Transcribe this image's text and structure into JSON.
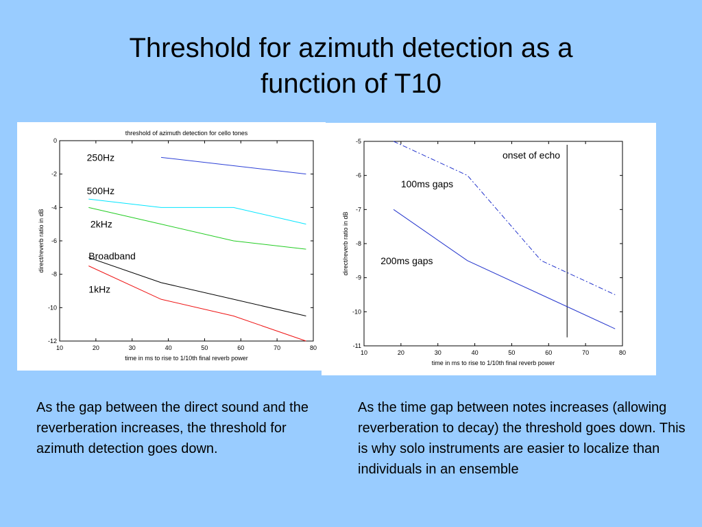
{
  "slide": {
    "title_line1": "Threshold for azimuth detection as a",
    "title_line2": "function of T10",
    "caption_left": "As the gap between the direct sound and the reverberation increases, the threshold for azimuth detection goes down.",
    "caption_right": "As the time gap between notes increases (allowing reverberation to decay) the threshold goes down.  This is why solo instruments are easier to localize than individuals in an ensemble"
  },
  "chart_data": [
    {
      "type": "line",
      "title": "threshold of azimuth detection for cello tones",
      "xlabel": "time in ms to rise to 1/10th final reverb power",
      "ylabel": "direct/reverb ratio in dB",
      "xlim": [
        10,
        80
      ],
      "ylim": [
        -12,
        0
      ],
      "xticks": [
        "10",
        "20",
        "30",
        "40",
        "50",
        "60",
        "70",
        "80"
      ],
      "yticks": [
        "0",
        "-2",
        "-4",
        "-6",
        "-8",
        "-10",
        "-12"
      ],
      "grid": false,
      "series": [
        {
          "name": "250Hz",
          "color": "#2b3fd6",
          "x": [
            38,
            58,
            78
          ],
          "y": [
            -1.0,
            -1.5,
            -2.0
          ],
          "label_x": 17.5,
          "label_y": -1.0
        },
        {
          "name": "500Hz",
          "color": "#00e5ff",
          "x": [
            18,
            38,
            58,
            78
          ],
          "y": [
            -3.5,
            -4.0,
            -4.0,
            -5.0
          ],
          "label_x": 17.5,
          "label_y": -3.0
        },
        {
          "name": "2kHz",
          "color": "#22cc22",
          "x": [
            18,
            38,
            58,
            78
          ],
          "y": [
            -4.0,
            -5.0,
            -6.0,
            -6.5
          ],
          "label_x": 18.5,
          "label_y": -5.0
        },
        {
          "name": "Broadband",
          "color": "#000000",
          "x": [
            18,
            38,
            58,
            78
          ],
          "y": [
            -7.0,
            -8.5,
            -9.5,
            -10.5
          ],
          "label_x": 18,
          "label_y": -6.9
        },
        {
          "name": "1kHz",
          "color": "#ee1111",
          "x": [
            18,
            38,
            58,
            78
          ],
          "y": [
            -7.5,
            -9.5,
            -10.5,
            -12.0
          ],
          "label_x": 18,
          "label_y": -8.9
        }
      ]
    },
    {
      "type": "line",
      "title": "",
      "xlabel": "time in ms to rise to 1/10th final reverb power",
      "ylabel": "direct/reverb ratio in dB",
      "xlim": [
        10,
        80
      ],
      "ylim": [
        -11,
        -5
      ],
      "xticks": [
        "10",
        "20",
        "30",
        "40",
        "50",
        "60",
        "70",
        "80"
      ],
      "yticks": [
        "-5",
        "-6",
        "-7",
        "-8",
        "-9",
        "-10",
        "-11"
      ],
      "grid": false,
      "series": [
        {
          "name": "100ms gaps",
          "color": "#2233cc",
          "style": "dashdot",
          "x": [
            18,
            38,
            58,
            78
          ],
          "y": [
            -5.0,
            -6.0,
            -8.5,
            -9.5
          ],
          "label_x": 20,
          "label_y": -6.25
        },
        {
          "name": "200ms gaps",
          "color": "#2233cc",
          "style": "solid",
          "x": [
            18,
            38,
            58,
            78
          ],
          "y": [
            -7.0,
            -8.5,
            -9.5,
            -10.5
          ],
          "label_x": 14.5,
          "label_y": -8.5
        }
      ],
      "annotations": [
        {
          "text": "onset of echo",
          "x": 65,
          "y_from": -5.1,
          "y_to": -10.75,
          "label_x": 47.5,
          "label_y": -5.5
        }
      ]
    }
  ]
}
